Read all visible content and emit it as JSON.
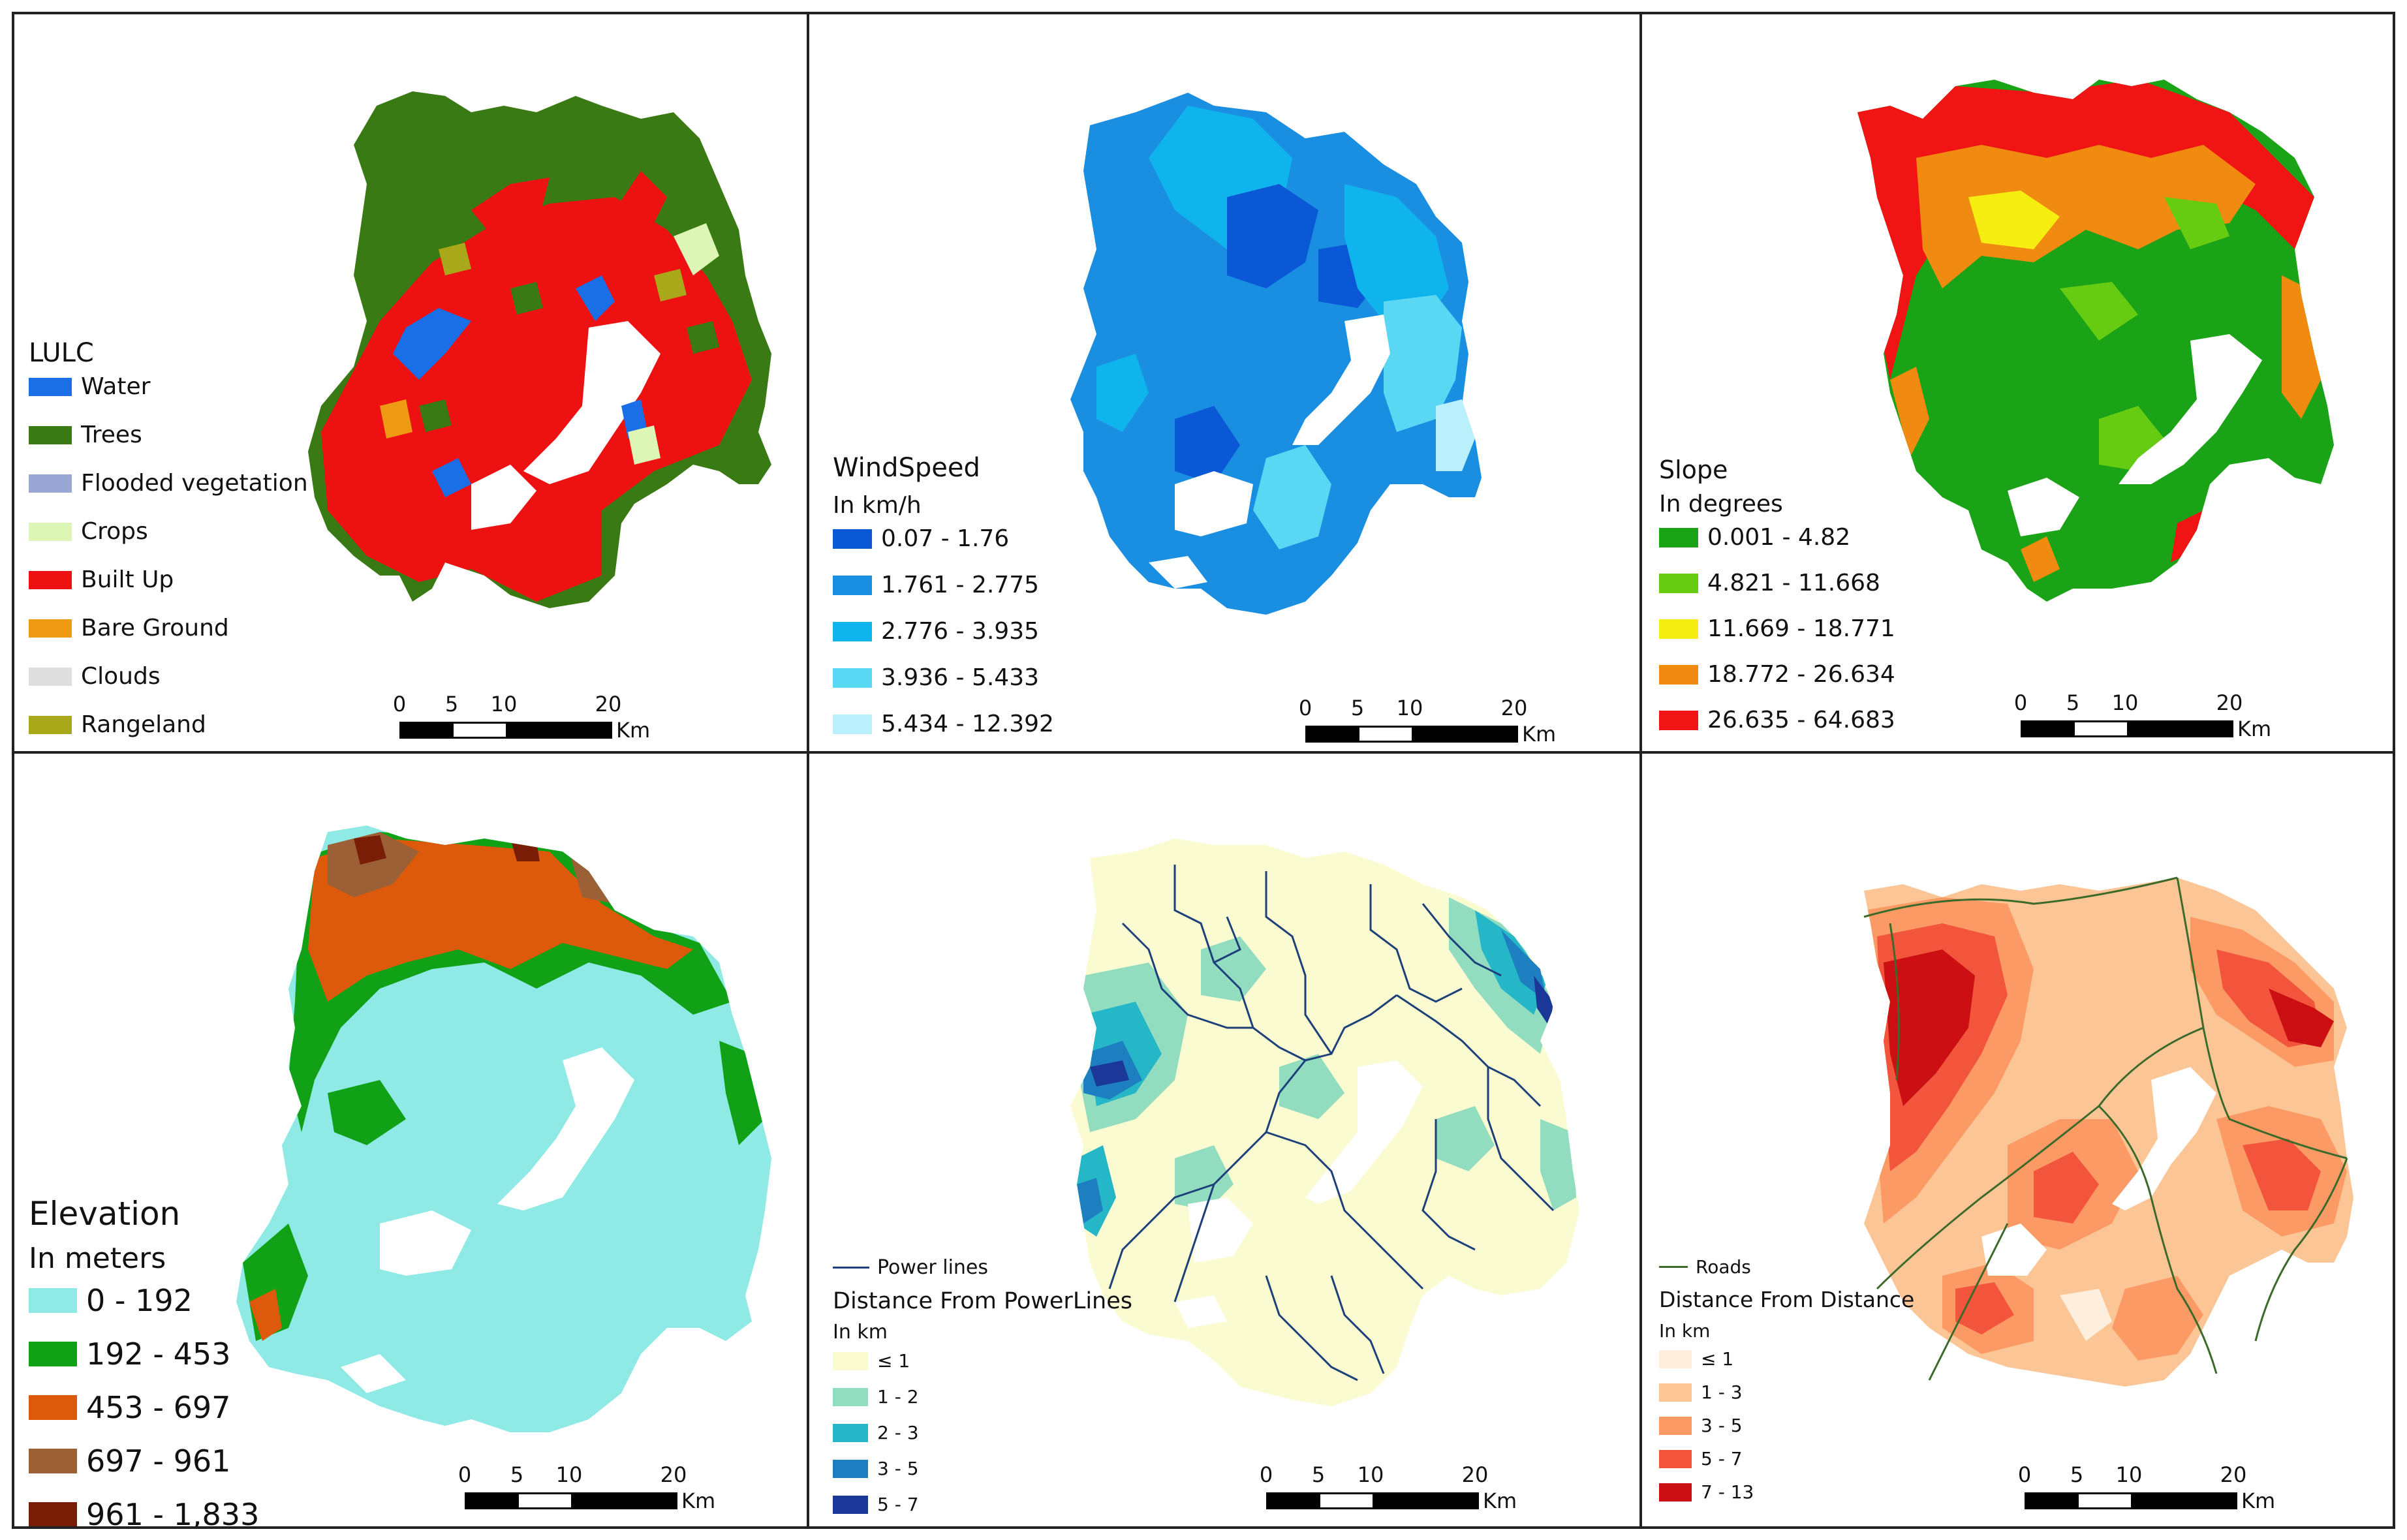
{
  "panels": {
    "lulc": {
      "title": "LULC",
      "items": [
        {
          "label": "Water",
          "color": "#1a6ee6"
        },
        {
          "label": "Trees",
          "color": "#3a7a14"
        },
        {
          "label": "Flooded vegetation",
          "color": "#9aa7d6"
        },
        {
          "label": "Crops",
          "color": "#ddf5b5"
        },
        {
          "label": "Built Up",
          "color": "#ee1111"
        },
        {
          "label": "Bare Ground",
          "color": "#ef9a13"
        },
        {
          "label": "Clouds",
          "color": "#dedede"
        },
        {
          "label": "Rangeland",
          "color": "#a9a81a"
        }
      ]
    },
    "wind": {
      "title": "WindSpeed",
      "subtitle": "In km/h",
      "items": [
        {
          "label": "0.07 - 1.76",
          "color": "#0a58d6"
        },
        {
          "label": "1.761 - 2.775",
          "color": "#1a8ee0"
        },
        {
          "label": "2.776 - 3.935",
          "color": "#10b4ec"
        },
        {
          "label": "3.936 - 5.433",
          "color": "#5ad8f3"
        },
        {
          "label": "5.434 - 12.392",
          "color": "#b9f0fb"
        }
      ]
    },
    "slope": {
      "title": "Slope",
      "subtitle": "In degrees",
      "items": [
        {
          "label": "0.001 - 4.82",
          "color": "#1aa316"
        },
        {
          "label": "4.821 - 11.668",
          "color": "#66cc12"
        },
        {
          "label": "11.669 - 18.771",
          "color": "#f5ee10"
        },
        {
          "label": "18.772 - 26.634",
          "color": "#f08a10"
        },
        {
          "label": "26.635 - 64.683",
          "color": "#f01414"
        }
      ]
    },
    "elevation": {
      "title": "Elevation",
      "subtitle": "In meters",
      "items": [
        {
          "label": "0 - 192",
          "color": "#8feae5"
        },
        {
          "label": "192 -  453",
          "color": "#11a116"
        },
        {
          "label": "453 - 697",
          "color": "#dd5a0c"
        },
        {
          "label": "697 - 961",
          "color": "#9b6036"
        },
        {
          "label": "961 - 1,833",
          "color": "#7a1d06"
        }
      ]
    },
    "power": {
      "line_label": "Power lines",
      "line_color": "#1d3f7a",
      "title": "Distance From PowerLines",
      "subtitle": "In km",
      "items": [
        {
          "label": "≤ 1",
          "color": "#fbfbd1"
        },
        {
          "label": "1 - 2",
          "color": "#92dcc0"
        },
        {
          "label": "2 - 3",
          "color": "#25b6c8"
        },
        {
          "label": "3 - 5",
          "color": "#1d7fc0"
        },
        {
          "label": "5 - 7",
          "color": "#1b3898"
        }
      ]
    },
    "roads": {
      "line_label": "Roads",
      "line_color": "#3c6a2a",
      "title": "Distance From Distance",
      "subtitle": "In km",
      "items": [
        {
          "label": "≤ 1",
          "color": "#fdeedd"
        },
        {
          "label": "1 - 3",
          "color": "#fcc596"
        },
        {
          "label": "3 - 5",
          "color": "#fb9a65"
        },
        {
          "label": "5 - 7",
          "color": "#f2553b"
        },
        {
          "label": "7 - 13",
          "color": "#cc0f12"
        }
      ]
    }
  },
  "scalebar": {
    "ticks": [
      "0",
      "5",
      "10",
      "20"
    ],
    "unit": "Km"
  }
}
